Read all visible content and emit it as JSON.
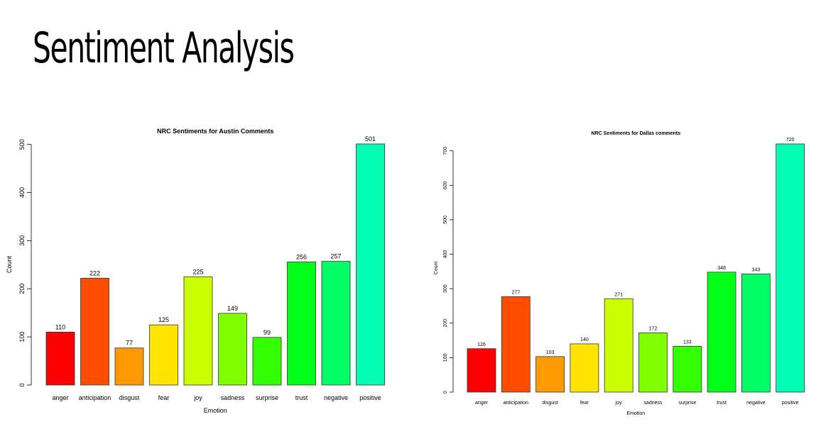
{
  "slide": {
    "title": "Sentiment Analysis"
  },
  "chart_data": [
    {
      "type": "bar",
      "title": "NRC Sentiments for Austin Comments",
      "xlabel": "Emotion",
      "ylabel": "Count",
      "categories": [
        "anger",
        "anticipation",
        "disgust",
        "fear",
        "joy",
        "sadness",
        "surprise",
        "trust",
        "negative",
        "positive"
      ],
      "values": [
        110,
        222,
        77,
        125,
        225,
        149,
        99,
        256,
        257,
        501
      ],
      "data_labels": [
        "110",
        "222",
        "77",
        "125",
        "225",
        "149",
        "99",
        "256",
        "257",
        "501"
      ],
      "yticks": [
        0,
        100,
        200,
        300,
        400,
        500
      ],
      "ytick_labels": [
        "0",
        "100",
        "200",
        "300",
        "400",
        "500"
      ],
      "ylim": [
        0,
        501
      ],
      "colors": [
        "#FF0000",
        "#FF4D00",
        "#FF9900",
        "#FFE500",
        "#CCFF00",
        "#80FF00",
        "#33FF00",
        "#00FF19",
        "#00FF66",
        "#00FFB2"
      ],
      "grid": false,
      "legend": "none"
    },
    {
      "type": "bar",
      "title": "NRC Sentiments for Dallas comments",
      "xlabel": "Emotion",
      "ylabel": "Count",
      "categories": [
        "anger",
        "anticipation",
        "disgust",
        "fear",
        "joy",
        "sadness",
        "surprise",
        "trust",
        "negative",
        "positive"
      ],
      "values": [
        126,
        277,
        103,
        140,
        271,
        172,
        133,
        348,
        343,
        720
      ],
      "data_labels": [
        "126",
        "277",
        "103",
        "140",
        "271",
        "172",
        "133",
        "348",
        "343",
        "720"
      ],
      "yticks": [
        0,
        100,
        200,
        300,
        400,
        500,
        600,
        700
      ],
      "ytick_labels": [
        "0",
        "100",
        "200",
        "300",
        "400",
        "500",
        "600",
        "700"
      ],
      "ylim": [
        0,
        720
      ],
      "colors": [
        "#FF0000",
        "#FF4D00",
        "#FF9900",
        "#FFE500",
        "#CCFF00",
        "#80FF00",
        "#33FF00",
        "#00FF19",
        "#00FF66",
        "#00FFB2"
      ],
      "grid": false,
      "legend": "none"
    }
  ]
}
